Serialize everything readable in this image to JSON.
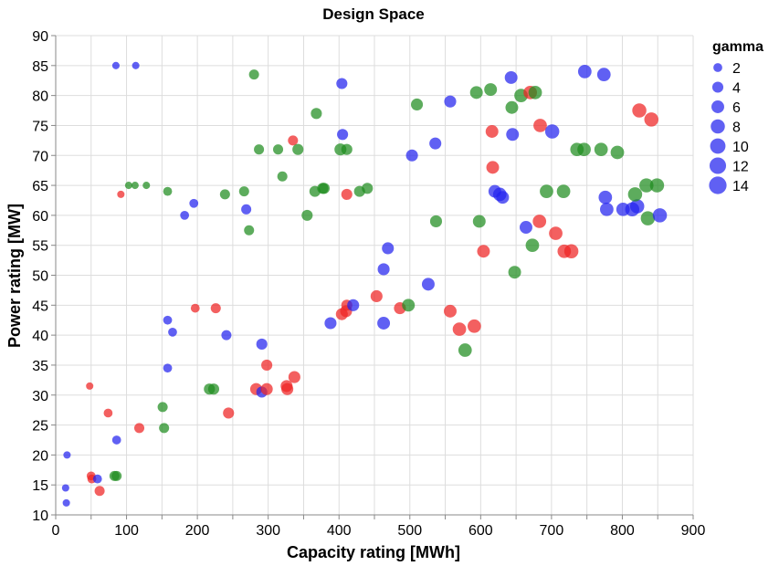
{
  "chart_data": {
    "type": "scatter",
    "title": "Design Space",
    "xlabel": "Capacity rating [MWh]",
    "ylabel": "Power rating [MW]",
    "xlim": [
      0,
      900
    ],
    "ylim": [
      10,
      90
    ],
    "xticks": [
      0,
      100,
      200,
      300,
      400,
      500,
      600,
      700,
      800,
      900
    ],
    "yticks": [
      10,
      15,
      20,
      25,
      30,
      35,
      40,
      45,
      50,
      55,
      60,
      65,
      70,
      75,
      80,
      85,
      90
    ],
    "grid": true,
    "colors": {
      "blue": "#2323ee",
      "red": "#ee2323",
      "green": "#1e8c1e"
    },
    "legend": {
      "title": "gamma",
      "position": "right",
      "entries": [
        {
          "label": "2",
          "gamma": 2
        },
        {
          "label": "4",
          "gamma": 4
        },
        {
          "label": "6",
          "gamma": 6
        },
        {
          "label": "8",
          "gamma": 8
        },
        {
          "label": "10",
          "gamma": 10
        },
        {
          "label": "12",
          "gamma": 12
        },
        {
          "label": "14",
          "gamma": 14
        }
      ]
    },
    "points": [
      {
        "x": 85,
        "y": 85,
        "gamma": 1,
        "color": "blue"
      },
      {
        "x": 113,
        "y": 85,
        "gamma": 1,
        "color": "blue"
      },
      {
        "x": 280,
        "y": 83.5,
        "gamma": 3,
        "color": "green"
      },
      {
        "x": 404,
        "y": 82,
        "gamma": 4,
        "color": "blue"
      },
      {
        "x": 643,
        "y": 83,
        "gamma": 6,
        "color": "blue"
      },
      {
        "x": 747,
        "y": 84,
        "gamma": 7,
        "color": "blue"
      },
      {
        "x": 774,
        "y": 83.5,
        "gamma": 7,
        "color": "blue"
      },
      {
        "x": 594,
        "y": 80.5,
        "gamma": 6,
        "color": "green"
      },
      {
        "x": 614,
        "y": 81,
        "gamma": 6,
        "color": "green"
      },
      {
        "x": 657,
        "y": 80,
        "gamma": 7,
        "color": "green"
      },
      {
        "x": 670,
        "y": 80.5,
        "gamma": 7,
        "color": "red"
      },
      {
        "x": 677,
        "y": 80.5,
        "gamma": 7,
        "color": "green"
      },
      {
        "x": 510,
        "y": 78.5,
        "gamma": 5,
        "color": "green"
      },
      {
        "x": 557,
        "y": 79,
        "gamma": 5,
        "color": "blue"
      },
      {
        "x": 644,
        "y": 78,
        "gamma": 6,
        "color": "green"
      },
      {
        "x": 368,
        "y": 77,
        "gamma": 4,
        "color": "green"
      },
      {
        "x": 824,
        "y": 77.5,
        "gamma": 8,
        "color": "red"
      },
      {
        "x": 841,
        "y": 76,
        "gamma": 8,
        "color": "red"
      },
      {
        "x": 335,
        "y": 72.5,
        "gamma": 3,
        "color": "red"
      },
      {
        "x": 405,
        "y": 73.5,
        "gamma": 4,
        "color": "blue"
      },
      {
        "x": 536,
        "y": 72,
        "gamma": 5,
        "color": "blue"
      },
      {
        "x": 616,
        "y": 74,
        "gamma": 6,
        "color": "red"
      },
      {
        "x": 645,
        "y": 73.5,
        "gamma": 6,
        "color": "blue"
      },
      {
        "x": 684,
        "y": 75,
        "gamma": 7,
        "color": "red"
      },
      {
        "x": 701,
        "y": 74,
        "gamma": 8,
        "color": "blue"
      },
      {
        "x": 287,
        "y": 71,
        "gamma": 3,
        "color": "green"
      },
      {
        "x": 314,
        "y": 71,
        "gamma": 3,
        "color": "green"
      },
      {
        "x": 342,
        "y": 71,
        "gamma": 4,
        "color": "green"
      },
      {
        "x": 402,
        "y": 71,
        "gamma": 5,
        "color": "green"
      },
      {
        "x": 411,
        "y": 71,
        "gamma": 4,
        "color": "green"
      },
      {
        "x": 503,
        "y": 70,
        "gamma": 5,
        "color": "blue"
      },
      {
        "x": 736,
        "y": 71,
        "gamma": 7,
        "color": "green"
      },
      {
        "x": 746,
        "y": 71,
        "gamma": 7,
        "color": "green"
      },
      {
        "x": 770,
        "y": 71,
        "gamma": 7,
        "color": "green"
      },
      {
        "x": 793,
        "y": 70.5,
        "gamma": 7,
        "color": "green"
      },
      {
        "x": 617,
        "y": 68,
        "gamma": 6,
        "color": "red"
      },
      {
        "x": 320,
        "y": 66.5,
        "gamma": 3,
        "color": "green"
      },
      {
        "x": 92,
        "y": 63.5,
        "gamma": 1,
        "color": "red"
      },
      {
        "x": 103,
        "y": 65,
        "gamma": 1,
        "color": "green"
      },
      {
        "x": 112,
        "y": 65,
        "gamma": 1,
        "color": "green"
      },
      {
        "x": 128,
        "y": 65,
        "gamma": 1,
        "color": "green"
      },
      {
        "x": 158,
        "y": 64,
        "gamma": 2,
        "color": "green"
      },
      {
        "x": 195,
        "y": 62,
        "gamma": 2,
        "color": "blue"
      },
      {
        "x": 239,
        "y": 63.5,
        "gamma": 3,
        "color": "green"
      },
      {
        "x": 266,
        "y": 64,
        "gamma": 3,
        "color": "green"
      },
      {
        "x": 182,
        "y": 60,
        "gamma": 2,
        "color": "blue"
      },
      {
        "x": 269,
        "y": 61,
        "gamma": 3,
        "color": "blue"
      },
      {
        "x": 273,
        "y": 57.5,
        "gamma": 3,
        "color": "green"
      },
      {
        "x": 355,
        "y": 60,
        "gamma": 4,
        "color": "green"
      },
      {
        "x": 366,
        "y": 64,
        "gamma": 4,
        "color": "green"
      },
      {
        "x": 377,
        "y": 64.5,
        "gamma": 4,
        "color": "green"
      },
      {
        "x": 379,
        "y": 64.5,
        "gamma": 4,
        "color": "green"
      },
      {
        "x": 411,
        "y": 63.5,
        "gamma": 4,
        "color": "red"
      },
      {
        "x": 429,
        "y": 64,
        "gamma": 4,
        "color": "green"
      },
      {
        "x": 440,
        "y": 64.5,
        "gamma": 4,
        "color": "green"
      },
      {
        "x": 620,
        "y": 64,
        "gamma": 6,
        "color": "blue"
      },
      {
        "x": 627,
        "y": 63.5,
        "gamma": 7,
        "color": "blue"
      },
      {
        "x": 631,
        "y": 63,
        "gamma": 6,
        "color": "blue"
      },
      {
        "x": 693,
        "y": 64,
        "gamma": 7,
        "color": "green"
      },
      {
        "x": 717,
        "y": 64,
        "gamma": 7,
        "color": "green"
      },
      {
        "x": 776,
        "y": 63,
        "gamma": 7,
        "color": "blue"
      },
      {
        "x": 778,
        "y": 61,
        "gamma": 7,
        "color": "blue"
      },
      {
        "x": 801,
        "y": 61,
        "gamma": 7,
        "color": "blue"
      },
      {
        "x": 814,
        "y": 61,
        "gamma": 8,
        "color": "blue"
      },
      {
        "x": 821,
        "y": 61.5,
        "gamma": 8,
        "color": "blue"
      },
      {
        "x": 818,
        "y": 63.5,
        "gamma": 8,
        "color": "green"
      },
      {
        "x": 834,
        "y": 65,
        "gamma": 8,
        "color": "green"
      },
      {
        "x": 849,
        "y": 65,
        "gamma": 8,
        "color": "green"
      },
      {
        "x": 836,
        "y": 59.5,
        "gamma": 8,
        "color": "green"
      },
      {
        "x": 853,
        "y": 60,
        "gamma": 8,
        "color": "blue"
      },
      {
        "x": 537,
        "y": 59,
        "gamma": 5,
        "color": "green"
      },
      {
        "x": 598,
        "y": 59,
        "gamma": 6,
        "color": "green"
      },
      {
        "x": 664,
        "y": 58,
        "gamma": 6,
        "color": "blue"
      },
      {
        "x": 683,
        "y": 59,
        "gamma": 7,
        "color": "red"
      },
      {
        "x": 706,
        "y": 57,
        "gamma": 7,
        "color": "red"
      },
      {
        "x": 469,
        "y": 54.5,
        "gamma": 5,
        "color": "blue"
      },
      {
        "x": 604,
        "y": 54,
        "gamma": 6,
        "color": "red"
      },
      {
        "x": 673,
        "y": 55,
        "gamma": 7,
        "color": "green"
      },
      {
        "x": 718,
        "y": 54,
        "gamma": 7,
        "color": "red"
      },
      {
        "x": 728,
        "y": 54,
        "gamma": 8,
        "color": "red"
      },
      {
        "x": 463,
        "y": 51,
        "gamma": 5,
        "color": "blue"
      },
      {
        "x": 648,
        "y": 50.5,
        "gamma": 6,
        "color": "green"
      },
      {
        "x": 526,
        "y": 48.5,
        "gamma": 6,
        "color": "blue"
      },
      {
        "x": 197,
        "y": 44.5,
        "gamma": 2,
        "color": "red"
      },
      {
        "x": 226,
        "y": 44.5,
        "gamma": 3,
        "color": "red"
      },
      {
        "x": 158,
        "y": 42.5,
        "gamma": 2,
        "color": "blue"
      },
      {
        "x": 165,
        "y": 40.5,
        "gamma": 2,
        "color": "blue"
      },
      {
        "x": 241,
        "y": 40,
        "gamma": 3,
        "color": "blue"
      },
      {
        "x": 291,
        "y": 38.5,
        "gamma": 4,
        "color": "blue"
      },
      {
        "x": 388,
        "y": 42,
        "gamma": 5,
        "color": "blue"
      },
      {
        "x": 404,
        "y": 43.5,
        "gamma": 5,
        "color": "red"
      },
      {
        "x": 410,
        "y": 44,
        "gamma": 5,
        "color": "red"
      },
      {
        "x": 411,
        "y": 45,
        "gamma": 4,
        "color": "red"
      },
      {
        "x": 420,
        "y": 45,
        "gamma": 5,
        "color": "blue"
      },
      {
        "x": 453,
        "y": 46.5,
        "gamma": 5,
        "color": "red"
      },
      {
        "x": 463,
        "y": 42,
        "gamma": 6,
        "color": "blue"
      },
      {
        "x": 486,
        "y": 44.5,
        "gamma": 5,
        "color": "red"
      },
      {
        "x": 498,
        "y": 45,
        "gamma": 6,
        "color": "green"
      },
      {
        "x": 557,
        "y": 44,
        "gamma": 6,
        "color": "red"
      },
      {
        "x": 570,
        "y": 41,
        "gamma": 7,
        "color": "red"
      },
      {
        "x": 591,
        "y": 41.5,
        "gamma": 7,
        "color": "red"
      },
      {
        "x": 578,
        "y": 37.5,
        "gamma": 7,
        "color": "green"
      },
      {
        "x": 158,
        "y": 34.5,
        "gamma": 2,
        "color": "blue"
      },
      {
        "x": 298,
        "y": 35,
        "gamma": 4,
        "color": "red"
      },
      {
        "x": 337,
        "y": 33,
        "gamma": 5,
        "color": "red"
      },
      {
        "x": 151,
        "y": 28,
        "gamma": 3,
        "color": "green"
      },
      {
        "x": 217,
        "y": 31,
        "gamma": 4,
        "color": "green"
      },
      {
        "x": 223,
        "y": 31,
        "gamma": 4,
        "color": "green"
      },
      {
        "x": 283,
        "y": 31,
        "gamma": 5,
        "color": "red"
      },
      {
        "x": 291,
        "y": 30.5,
        "gamma": 4,
        "color": "blue"
      },
      {
        "x": 298,
        "y": 31,
        "gamma": 5,
        "color": "red"
      },
      {
        "x": 326,
        "y": 31.5,
        "gamma": 5,
        "color": "red"
      },
      {
        "x": 327,
        "y": 31,
        "gamma": 5,
        "color": "red"
      },
      {
        "x": 48,
        "y": 31.5,
        "gamma": 1,
        "color": "red"
      },
      {
        "x": 74,
        "y": 27,
        "gamma": 2,
        "color": "red"
      },
      {
        "x": 118,
        "y": 24.5,
        "gamma": 3,
        "color": "red"
      },
      {
        "x": 153,
        "y": 24.5,
        "gamma": 3,
        "color": "green"
      },
      {
        "x": 244,
        "y": 27,
        "gamma": 4,
        "color": "red"
      },
      {
        "x": 86,
        "y": 22.5,
        "gamma": 2,
        "color": "blue"
      },
      {
        "x": 16,
        "y": 20,
        "gamma": 1,
        "color": "blue"
      },
      {
        "x": 50,
        "y": 16.5,
        "gamma": 2,
        "color": "red"
      },
      {
        "x": 51,
        "y": 16,
        "gamma": 2,
        "color": "red"
      },
      {
        "x": 59,
        "y": 16,
        "gamma": 2,
        "color": "blue"
      },
      {
        "x": 62,
        "y": 14,
        "gamma": 3,
        "color": "red"
      },
      {
        "x": 83,
        "y": 16.5,
        "gamma": 3,
        "color": "green"
      },
      {
        "x": 86,
        "y": 16.5,
        "gamma": 3,
        "color": "green"
      },
      {
        "x": 14,
        "y": 14.5,
        "gamma": 1,
        "color": "blue"
      },
      {
        "x": 15,
        "y": 12,
        "gamma": 1,
        "color": "blue"
      }
    ]
  }
}
